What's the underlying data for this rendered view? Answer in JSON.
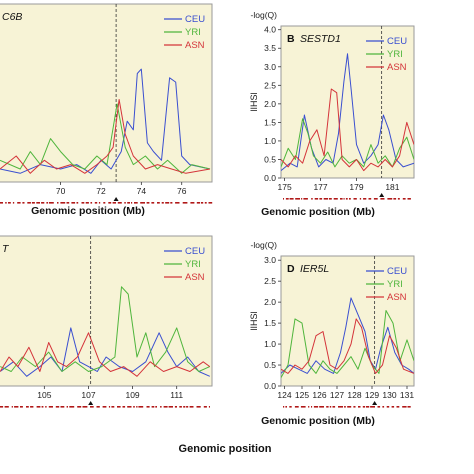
{
  "figure": {
    "bottom_label": "Genomic position"
  },
  "colors": {
    "panel_bg": "#f7f3d6",
    "panel_border": "#9a9a9a",
    "CEU": "#3a4fd0",
    "YRI": "#4fb53c",
    "ASN": "#d4343a",
    "marker": "#b01818"
  },
  "chart_data": [
    {
      "id": "A",
      "type": "line",
      "panel_label": "",
      "gene": "C6B",
      "xlabel": "Genomic position (Mb)",
      "ylabel": "",
      "right_axis_label": "",
      "xlim": [
        66.9,
        77.5
      ],
      "ylim": [
        0,
        4.1
      ],
      "xticks": [
        70,
        72,
        74,
        76
      ],
      "yticks": [],
      "gene_position": 72.75,
      "legend": {
        "placement": "top-right",
        "entries": [
          "CEU",
          "YRI",
          "ASN"
        ]
      },
      "series": [
        {
          "name": "CEU",
          "x": [
            67,
            68,
            69,
            70,
            70.8,
            71.5,
            72,
            72.5,
            73,
            73.3,
            73.6,
            73.8,
            74,
            74.3,
            74.6,
            75,
            75.4,
            75.7,
            76,
            76.4,
            77.4
          ],
          "y": [
            0.3,
            0.2,
            0.4,
            0.3,
            0.4,
            0.2,
            0.5,
            0.3,
            0.7,
            1.4,
            1.2,
            2.5,
            2.6,
            0.9,
            0.7,
            0.5,
            2.4,
            2.3,
            0.6,
            0.4,
            0.3
          ]
        },
        {
          "name": "YRI",
          "x": [
            67,
            68,
            68.5,
            69,
            69.5,
            70,
            70.6,
            71.2,
            71.8,
            72.3,
            72.8,
            73.2,
            73.6,
            74.2,
            74.8,
            75.3,
            76,
            76.5,
            77.4
          ],
          "y": [
            0.5,
            0.3,
            0.7,
            0.4,
            1.0,
            0.7,
            0.4,
            0.3,
            0.6,
            0.4,
            1.8,
            0.8,
            0.4,
            0.6,
            0.3,
            0.5,
            0.2,
            0.4,
            0.3
          ]
        },
        {
          "name": "ASN",
          "x": [
            67,
            67.8,
            68.5,
            69.2,
            69.8,
            70.5,
            71.2,
            71.8,
            72.3,
            72.6,
            72.9,
            73.2,
            73.6,
            74.2,
            74.8,
            75.5,
            76.2,
            77.4
          ],
          "y": [
            0.3,
            0.6,
            0.2,
            0.5,
            0.3,
            0.4,
            0.2,
            0.4,
            0.6,
            0.8,
            1.9,
            1.1,
            0.6,
            0.3,
            0.4,
            0.3,
            0.2,
            0.3
          ]
        }
      ]
    },
    {
      "id": "B",
      "type": "line",
      "panel_label": "B",
      "gene": "SESTD1",
      "xlabel": "Genomic position (Mb)",
      "ylabel": "lIHSl",
      "right_axis_label": "-log(Q)",
      "xlim": [
        174.8,
        182.2
      ],
      "ylim": [
        0,
        4.1
      ],
      "xticks": [
        175,
        177,
        179,
        181
      ],
      "yticks": [
        0.0,
        0.5,
        1.0,
        1.5,
        2.0,
        2.5,
        3.0,
        3.5,
        4.0
      ],
      "gene_position": 180.4,
      "legend": {
        "placement": "top-right",
        "entries": [
          "CEU",
          "YRI",
          "ASN"
        ]
      },
      "series": [
        {
          "name": "CEU",
          "x": [
            174.8,
            175.3,
            175.7,
            176.1,
            176.5,
            176.9,
            177.3,
            177.7,
            178.0,
            178.3,
            178.5,
            178.7,
            179.0,
            179.4,
            179.8,
            180.2,
            180.5,
            180.8,
            181.2,
            181.6,
            182.2
          ],
          "y": [
            0.2,
            0.4,
            0.3,
            1.7,
            0.8,
            0.3,
            0.5,
            0.4,
            1.2,
            2.6,
            3.35,
            2.4,
            0.9,
            0.4,
            0.6,
            0.9,
            1.7,
            1.3,
            0.5,
            0.3,
            0.4
          ]
        },
        {
          "name": "YRI",
          "x": [
            174.8,
            175.2,
            175.6,
            176.0,
            176.3,
            176.6,
            177.0,
            177.4,
            177.8,
            178.2,
            178.6,
            179.0,
            179.4,
            179.8,
            180.2,
            180.6,
            181.0,
            181.4,
            181.8,
            182.2
          ],
          "y": [
            0.3,
            0.8,
            0.5,
            1.6,
            1.2,
            0.6,
            0.4,
            0.7,
            0.3,
            0.6,
            0.4,
            0.5,
            0.3,
            0.9,
            0.4,
            0.6,
            0.3,
            0.8,
            1.1,
            0.5
          ]
        },
        {
          "name": "ASN",
          "x": [
            174.8,
            175.2,
            175.6,
            176.0,
            176.4,
            176.8,
            177.2,
            177.6,
            177.9,
            178.2,
            178.6,
            179.0,
            179.4,
            179.8,
            180.2,
            180.6,
            181.0,
            181.4,
            181.8,
            182.2
          ],
          "y": [
            0.5,
            0.3,
            0.6,
            0.4,
            1.0,
            1.3,
            0.6,
            2.4,
            2.3,
            0.5,
            0.3,
            0.5,
            0.2,
            0.4,
            0.3,
            0.5,
            0.3,
            0.6,
            1.5,
            0.9
          ]
        }
      ]
    },
    {
      "id": "C",
      "type": "line",
      "panel_label": "",
      "gene": "T",
      "xlabel": "",
      "ylabel": "",
      "right_axis_label": "",
      "xlim": [
        102.9,
        112.6
      ],
      "ylim": [
        0,
        3.1
      ],
      "xticks": [
        105,
        107,
        109,
        111
      ],
      "yticks": [],
      "gene_position": 107.1,
      "legend": {
        "placement": "top-right",
        "entries": [
          "CEU",
          "YRI",
          "ASN"
        ]
      },
      "series": [
        {
          "name": "CEU",
          "x": [
            103,
            103.6,
            104.2,
            104.8,
            105.3,
            105.8,
            106.2,
            106.6,
            107.0,
            107.4,
            107.8,
            108.4,
            109.0,
            109.6,
            110.2,
            110.6,
            111.0,
            111.5,
            112.0,
            112.5
          ],
          "y": [
            0.3,
            0.5,
            0.2,
            0.4,
            0.6,
            0.3,
            1.2,
            0.5,
            0.4,
            0.3,
            0.6,
            0.4,
            0.3,
            0.5,
            1.1,
            0.7,
            0.4,
            0.6,
            0.3,
            0.2
          ]
        },
        {
          "name": "YRI",
          "x": [
            103,
            103.5,
            104.0,
            104.6,
            105.2,
            105.8,
            106.4,
            107.0,
            107.6,
            108.2,
            108.5,
            108.8,
            109.2,
            109.6,
            110.0,
            110.5,
            111.0,
            111.5,
            112.0,
            112.5
          ],
          "y": [
            0.4,
            0.3,
            0.6,
            0.4,
            0.7,
            0.3,
            0.5,
            0.3,
            0.4,
            0.6,
            2.05,
            1.9,
            0.6,
            1.1,
            0.4,
            0.7,
            1.2,
            0.5,
            0.3,
            0.4
          ]
        },
        {
          "name": "ASN",
          "x": [
            103,
            103.4,
            103.8,
            104.3,
            104.8,
            105.2,
            105.6,
            106.0,
            106.5,
            107.0,
            107.5,
            108.0,
            108.6,
            109.2,
            109.8,
            110.4,
            111.0,
            111.6,
            112.2,
            112.5
          ],
          "y": [
            0.3,
            0.6,
            0.4,
            0.8,
            0.3,
            0.9,
            0.5,
            0.4,
            0.6,
            1.1,
            0.5,
            0.3,
            0.4,
            0.2,
            0.5,
            0.3,
            0.4,
            0.3,
            0.5,
            0.4
          ]
        }
      ]
    },
    {
      "id": "D",
      "type": "line",
      "panel_label": "D",
      "gene": "IER5L",
      "xlabel": "Genomic position (Mb)",
      "ylabel": "lIHSl",
      "right_axis_label": "-log(Q)",
      "xlim": [
        123.8,
        131.4
      ],
      "ylim": [
        0,
        3.1
      ],
      "xticks": [
        124,
        125,
        126,
        127,
        128,
        129,
        130,
        131
      ],
      "yticks": [
        0.0,
        0.5,
        1.0,
        1.5,
        2.0,
        2.5,
        3.0
      ],
      "gene_position": 129.15,
      "legend": {
        "placement": "top-right",
        "entries": [
          "CEU",
          "YRI",
          "ASN"
        ]
      },
      "series": [
        {
          "name": "CEU",
          "x": [
            123.8,
            124.3,
            124.8,
            125.3,
            125.8,
            126.3,
            126.8,
            127.2,
            127.5,
            127.8,
            128.0,
            128.3,
            128.6,
            128.9,
            129.2,
            129.5,
            129.9,
            130.3,
            130.7,
            131.1,
            131.4
          ],
          "y": [
            0.3,
            0.5,
            0.4,
            0.3,
            0.6,
            0.4,
            0.3,
            0.8,
            1.4,
            2.1,
            1.9,
            1.6,
            1.3,
            0.6,
            0.4,
            0.9,
            1.4,
            0.8,
            0.5,
            0.4,
            0.3
          ]
        },
        {
          "name": "YRI",
          "x": [
            123.8,
            124.2,
            124.6,
            125.0,
            125.4,
            125.8,
            126.2,
            126.6,
            127.0,
            127.4,
            127.8,
            128.2,
            128.6,
            129.0,
            129.4,
            129.8,
            130.2,
            130.6,
            131.0,
            131.4
          ],
          "y": [
            0.2,
            0.5,
            1.6,
            1.5,
            0.5,
            0.3,
            0.6,
            0.4,
            0.3,
            0.5,
            0.7,
            0.4,
            0.9,
            0.5,
            0.3,
            1.8,
            1.5,
            0.6,
            1.1,
            0.6
          ]
        },
        {
          "name": "ASN",
          "x": [
            123.8,
            124.2,
            124.6,
            125.0,
            125.4,
            125.8,
            126.2,
            126.6,
            127.0,
            127.4,
            127.8,
            128.1,
            128.4,
            128.8,
            129.2,
            129.6,
            130.0,
            130.4,
            130.8,
            131.4
          ],
          "y": [
            0.4,
            0.3,
            0.5,
            0.4,
            0.6,
            1.2,
            1.3,
            0.5,
            0.4,
            0.6,
            1.0,
            1.6,
            1.4,
            0.7,
            0.3,
            0.5,
            1.2,
            0.9,
            0.4,
            0.3
          ]
        }
      ]
    }
  ]
}
